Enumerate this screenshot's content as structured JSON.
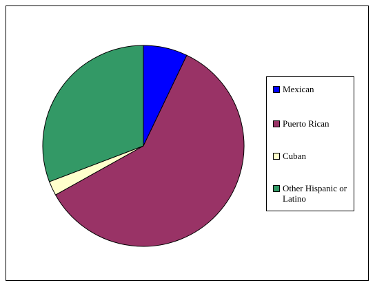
{
  "chart_data": {
    "type": "pie",
    "categories": [
      "Mexican",
      "Puerto Rican",
      "Cuban",
      "Other Hispanic or Latino"
    ],
    "values": [
      7.1,
      59.8,
      2.3,
      30.8
    ],
    "colors": [
      "#0000ff",
      "#993366",
      "#ffffcc",
      "#339966"
    ],
    "start_angle_deg": 0,
    "direction": "clockwise",
    "legend_position": "right",
    "title": ""
  }
}
